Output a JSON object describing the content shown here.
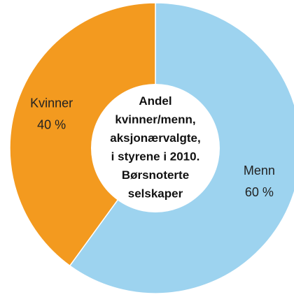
{
  "chart_data": {
    "type": "donut",
    "title": [
      "Andel",
      "kvinner/menn,",
      "aksjonærvalgte,",
      "i styrene i 2010.",
      "Børsnoterte",
      "selskaper"
    ],
    "categories": [
      "Menn",
      "Kvinner"
    ],
    "values": [
      60,
      40
    ],
    "value_labels": [
      "60 %",
      "40 %"
    ],
    "colors": [
      "#9dd3ef",
      "#f39a1f"
    ]
  }
}
